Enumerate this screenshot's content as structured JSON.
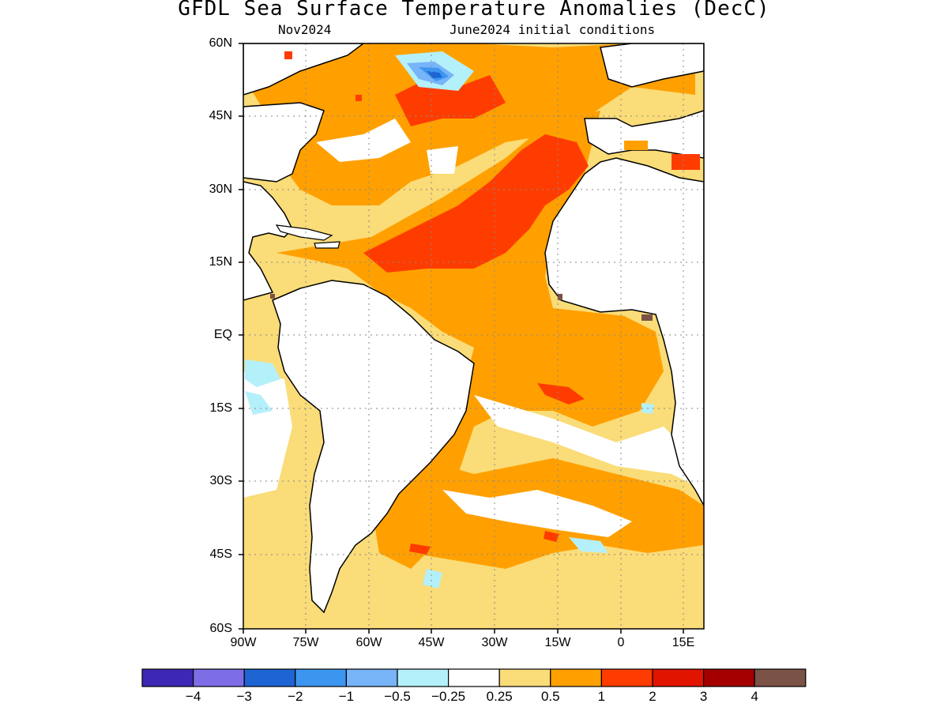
{
  "title": "GFDL Sea Surface Temperature Anomalies (DecC)",
  "subtitle_left": "Nov2024",
  "subtitle_right": "June2024 initial conditions",
  "lat_labels": [
    "60N",
    "45N",
    "30N",
    "15N",
    "EQ",
    "15S",
    "30S",
    "45S",
    "60S"
  ],
  "lon_labels": [
    "90W",
    "75W",
    "60W",
    "45W",
    "30W",
    "15W",
    "0",
    "15E"
  ],
  "colorbar": {
    "colors": [
      "#3c28b4",
      "#7d6ee6",
      "#1e64d2",
      "#3c96f0",
      "#78b4f8",
      "#b4f0fa",
      "#ffffff",
      "#fadc78",
      "#ffa000",
      "#ff3c00",
      "#e11400",
      "#a50000",
      "#7a5246"
    ],
    "labels": [
      "−4",
      "−3",
      "−2",
      "−1",
      "−0.5",
      "−0.25",
      "0.25",
      "0.5",
      "1",
      "2",
      "3",
      "4"
    ]
  }
}
